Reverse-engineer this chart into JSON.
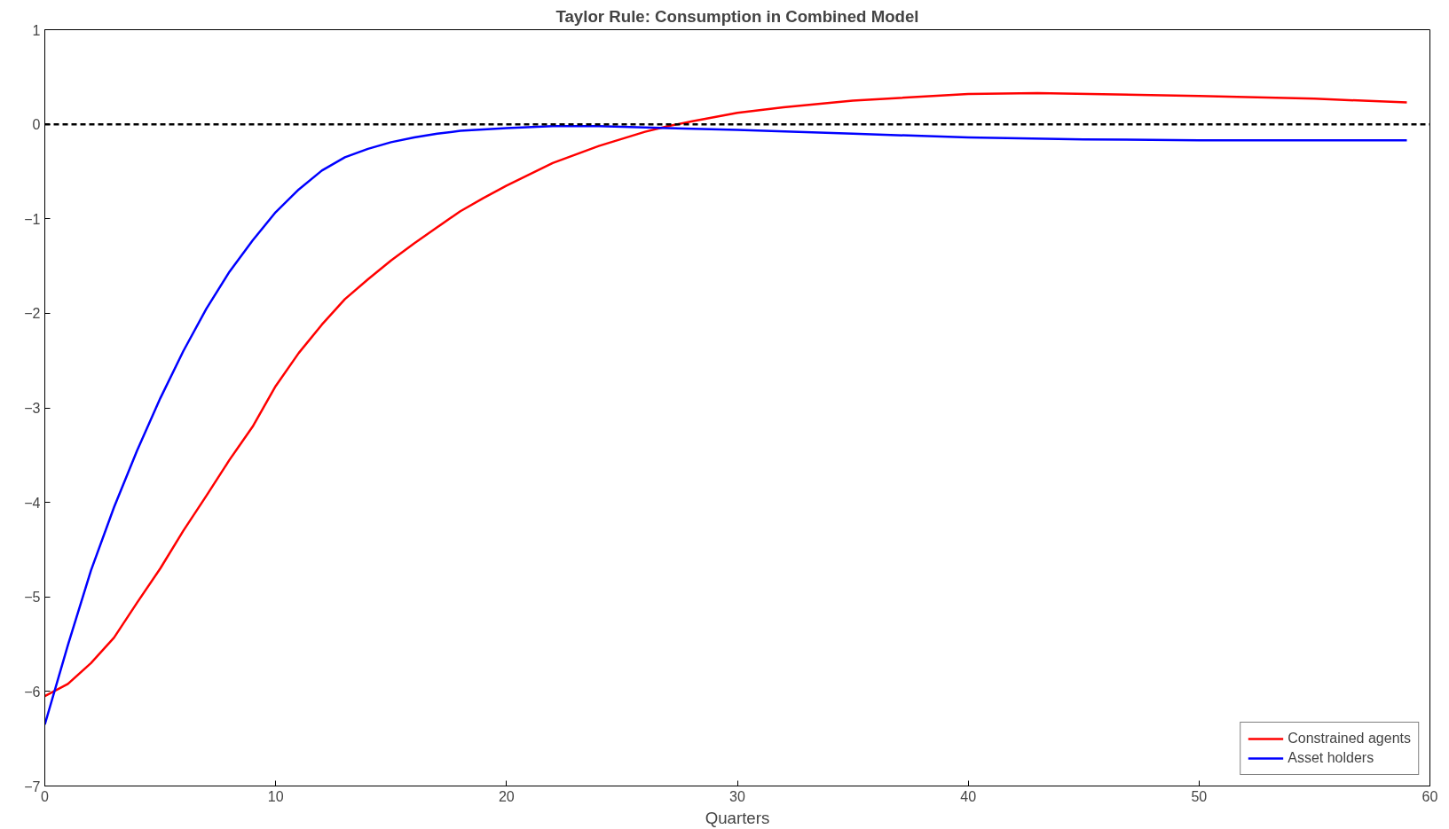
{
  "chart_data": {
    "type": "line",
    "title": "Taylor Rule: Consumption in Combined Model",
    "xlabel": "Quarters",
    "xlim": [
      0,
      60
    ],
    "ylim": [
      -7,
      1
    ],
    "xticks": [
      0,
      10,
      20,
      30,
      40,
      50,
      60
    ],
    "yticks": [
      -7,
      -6,
      -5,
      -4,
      -3,
      -2,
      -1,
      0,
      1
    ],
    "grid": false,
    "legend": "bottom right",
    "line_style": "solid",
    "marker": "none",
    "series": [
      {
        "name": "Constrained agents",
        "color": "#ff0000",
        "x": [
          0,
          1,
          2,
          3,
          4,
          5,
          6,
          7,
          8,
          9,
          10,
          11,
          12,
          13,
          14,
          15,
          16,
          17,
          18,
          19,
          20,
          22,
          24,
          26,
          27,
          28,
          30,
          32,
          35,
          40,
          43,
          50,
          55,
          59
        ],
        "values": [
          -6.05,
          -5.92,
          -5.7,
          -5.43,
          -5.06,
          -4.7,
          -4.3,
          -3.93,
          -3.55,
          -3.2,
          -2.77,
          -2.42,
          -2.12,
          -1.85,
          -1.64,
          -1.44,
          -1.26,
          -1.09,
          -0.92,
          -0.78,
          -0.65,
          -0.41,
          -0.23,
          -0.08,
          -0.02,
          0.03,
          0.12,
          0.18,
          0.25,
          0.32,
          0.33,
          0.3,
          0.27,
          0.23
        ]
      },
      {
        "name": "Asset holders",
        "color": "#0000ff",
        "x": [
          0,
          1,
          2,
          3,
          4,
          5,
          6,
          7,
          8,
          9,
          10,
          11,
          12,
          13,
          14,
          15,
          16,
          17,
          18,
          20,
          22,
          24,
          27,
          30,
          35,
          40,
          45,
          50,
          55,
          59
        ],
        "values": [
          -6.35,
          -5.51,
          -4.72,
          -4.05,
          -3.45,
          -2.9,
          -2.4,
          -1.95,
          -1.56,
          -1.23,
          -0.93,
          -0.69,
          -0.49,
          -0.35,
          -0.26,
          -0.19,
          -0.14,
          -0.1,
          -0.07,
          -0.04,
          -0.02,
          -0.02,
          -0.04,
          -0.06,
          -0.1,
          -0.14,
          -0.16,
          -0.17,
          -0.17,
          -0.17
        ]
      }
    ],
    "ref_lines": [
      {
        "axis": "y",
        "value": 0,
        "color": "#000000",
        "line_style": "dashed"
      }
    ]
  }
}
